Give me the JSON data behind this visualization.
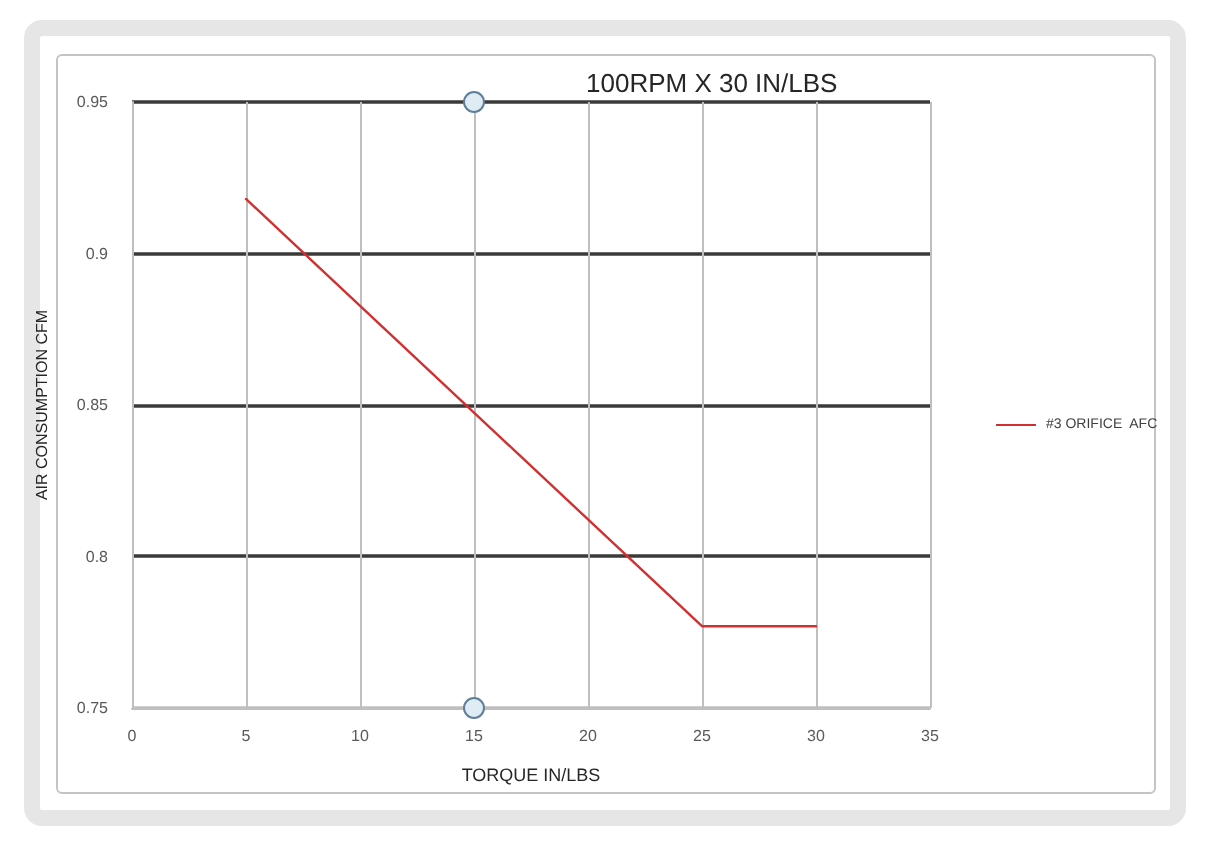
{
  "chart_data": {
    "type": "line",
    "title": "100RPM X 30 IN/LBS",
    "xlabel": "TORQUE IN/LBS",
    "ylabel": "AIR CONSUMPTION CFM",
    "x": [
      5,
      25,
      30
    ],
    "series": [
      {
        "name": "#3 ORIFICE  AFC",
        "color": "#d03030",
        "values": [
          0.918,
          0.777,
          0.777
        ]
      }
    ],
    "xlim": [
      0,
      35
    ],
    "xticks": [
      0,
      5,
      10,
      15,
      20,
      25,
      30,
      35
    ],
    "ylim": [
      0.75,
      0.95
    ],
    "yticks": [
      0.75,
      0.8,
      0.85,
      0.9,
      0.95
    ],
    "grid": true,
    "legend": "right"
  }
}
